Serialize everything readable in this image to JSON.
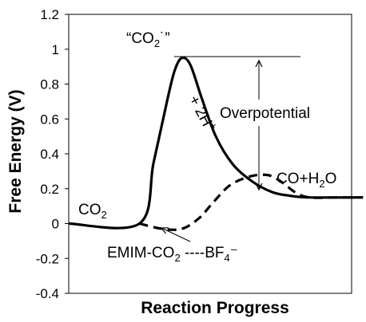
{
  "chart_data": {
    "type": "line",
    "xlabel": "Reaction Progress",
    "ylabel": "Free Energy (V)",
    "ylim": [
      -0.4,
      1.2
    ],
    "yticks": [
      1.2,
      1,
      0.8,
      0.6,
      0.4,
      0.2,
      0,
      -0.2,
      -0.4
    ],
    "grid": false,
    "xlim": [
      0,
      10
    ],
    "series": [
      {
        "style": "solid",
        "x": [
          0,
          2.5,
          3.0,
          3.5,
          3.75,
          4.0,
          4.3,
          4.7,
          5.2,
          5.8,
          6.5,
          7.2,
          7.8,
          8.5,
          10.4
        ],
        "y": [
          0,
          0,
          0.35,
          0.72,
          0.88,
          0.95,
          0.91,
          0.72,
          0.5,
          0.34,
          0.24,
          0.18,
          0.16,
          0.15,
          0.15
        ]
      },
      {
        "style": "dashed",
        "x": [
          2.5,
          3.3,
          4.0,
          4.6,
          5.1,
          5.7,
          6.4,
          6.9,
          7.2,
          7.6,
          8.0,
          8.5,
          9.5,
          10.4
        ],
        "y": [
          0,
          -0.03,
          -0.03,
          0.03,
          0.12,
          0.22,
          0.27,
          0.28,
          0.27,
          0.23,
          0.18,
          0.15,
          0.15,
          0.15
        ]
      }
    ],
    "annotations": {
      "co2": "CO",
      "co2_sub": "2",
      "radical": "“CO",
      "radical_sub": "2",
      "radical_end": "˙”",
      "protons": "+ 2H",
      "protons_sup": "+",
      "overpotential": "Overpotential",
      "product": "CO+H",
      "product_sub": "2",
      "product_end": "O",
      "complex": "EMIM-CO",
      "complex_sub": "2",
      "complex_mid": " ----BF",
      "complex_sub2": "4",
      "complex_end": "⁻"
    }
  }
}
